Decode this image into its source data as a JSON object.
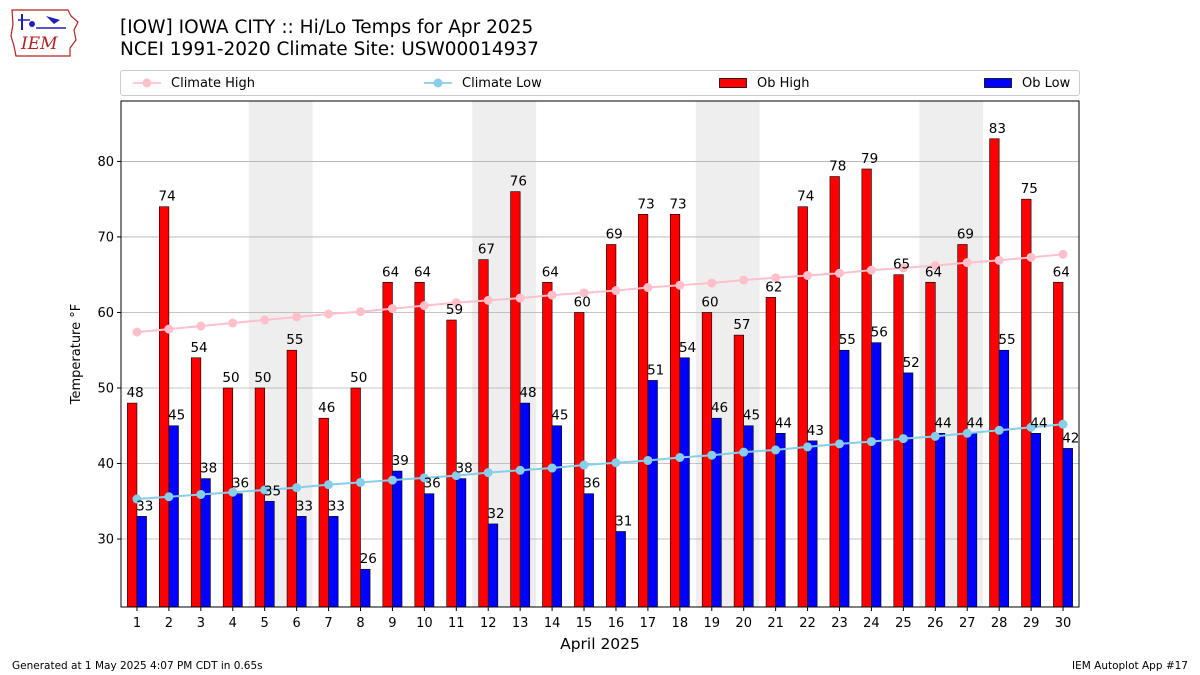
{
  "header": {
    "title_line1": "[IOW] IOWA CITY :: Hi/Lo Temps for Apr 2025",
    "title_line2": "NCEI 1991-2020 Climate Site: USW00014937",
    "logo_text": "IEM"
  },
  "footer": {
    "generated": "Generated at 1 May 2025 4:07 PM CDT in 0.65s",
    "app": "IEM Autoplot App #17"
  },
  "colors": {
    "ob_high": "#ff0000",
    "ob_low": "#0000ff",
    "climate_high": "#ffc0cb",
    "climate_low": "#87ceeb",
    "weekend_shade": "#eeeeee",
    "grid": "#b0b0b0"
  },
  "chart_data": {
    "type": "bar",
    "xlabel": "April 2025",
    "ylabel": "Temperature °F",
    "ylim": [
      21,
      88
    ],
    "yticks": [
      30,
      40,
      50,
      60,
      70,
      80
    ],
    "grid": "horizontal",
    "legend_position": "top",
    "categories": [
      "1",
      "2",
      "3",
      "4",
      "5",
      "6",
      "7",
      "8",
      "9",
      "10",
      "11",
      "12",
      "13",
      "14",
      "15",
      "16",
      "17",
      "18",
      "19",
      "20",
      "21",
      "22",
      "23",
      "24",
      "25",
      "26",
      "27",
      "28",
      "29",
      "30"
    ],
    "shaded_day_pairs": [
      [
        5,
        6
      ],
      [
        12,
        13
      ],
      [
        19,
        20
      ],
      [
        26,
        27
      ]
    ],
    "series": [
      {
        "name": "Ob High",
        "kind": "bar",
        "values": [
          48,
          74,
          54,
          50,
          50,
          55,
          46,
          50,
          64,
          64,
          59,
          67,
          76,
          64,
          60,
          69,
          73,
          73,
          60,
          57,
          62,
          74,
          78,
          79,
          65,
          64,
          69,
          83,
          75,
          64
        ]
      },
      {
        "name": "Ob Low",
        "kind": "bar",
        "values": [
          33,
          45,
          38,
          36,
          35,
          33,
          33,
          26,
          39,
          36,
          38,
          32,
          48,
          45,
          36,
          31,
          51,
          54,
          46,
          45,
          44,
          43,
          55,
          56,
          52,
          44,
          44,
          55,
          44,
          42
        ]
      },
      {
        "name": "Climate High",
        "kind": "line",
        "values": [
          57.4,
          57.8,
          58.2,
          58.6,
          59.0,
          59.4,
          59.8,
          60.1,
          60.5,
          60.9,
          61.3,
          61.6,
          61.9,
          62.3,
          62.6,
          62.9,
          63.3,
          63.6,
          63.9,
          64.3,
          64.6,
          64.9,
          65.2,
          65.6,
          65.9,
          66.2,
          66.6,
          66.9,
          67.3,
          67.7
        ]
      },
      {
        "name": "Climate Low",
        "kind": "line",
        "values": [
          35.3,
          35.6,
          35.9,
          36.2,
          36.5,
          36.8,
          37.2,
          37.5,
          37.8,
          38.1,
          38.4,
          38.8,
          39.1,
          39.4,
          39.8,
          40.1,
          40.4,
          40.8,
          41.1,
          41.5,
          41.8,
          42.2,
          42.6,
          42.9,
          43.3,
          43.6,
          44.0,
          44.4,
          44.8,
          45.2
        ]
      }
    ]
  }
}
